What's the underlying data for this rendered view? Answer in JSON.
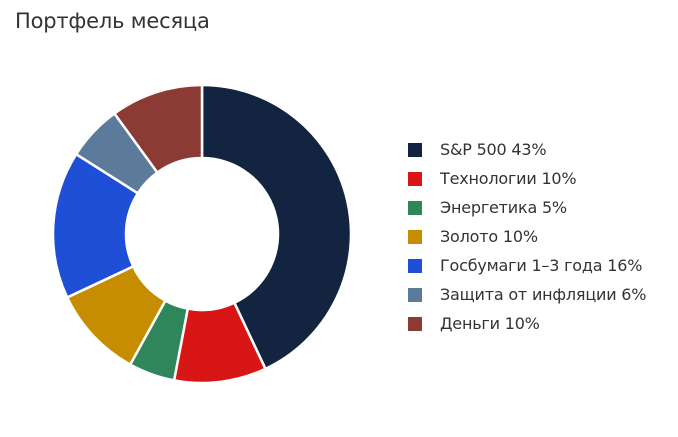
{
  "title": "Портфель месяца",
  "chart_data": {
    "type": "pie",
    "variant": "donut",
    "legend_position": "right",
    "series": [
      {
        "label": "S&P 500 43%",
        "value": 43,
        "color": "#12243f"
      },
      {
        "label": "Технологии 10%",
        "value": 10,
        "color": "#d91616"
      },
      {
        "label": "Энергетика 5%",
        "value": 5,
        "color": "#2e865a"
      },
      {
        "label": "Золото 10%",
        "value": 10,
        "color": "#c78d00"
      },
      {
        "label": "Госбумаги 1–3 года 16%",
        "value": 16,
        "color": "#1f4fd6"
      },
      {
        "label": "Защита от инфляции 6%",
        "value": 6,
        "color": "#5c7a99"
      },
      {
        "label": "Деньги 10%",
        "value": 10,
        "color": "#8c3b34"
      }
    ]
  }
}
